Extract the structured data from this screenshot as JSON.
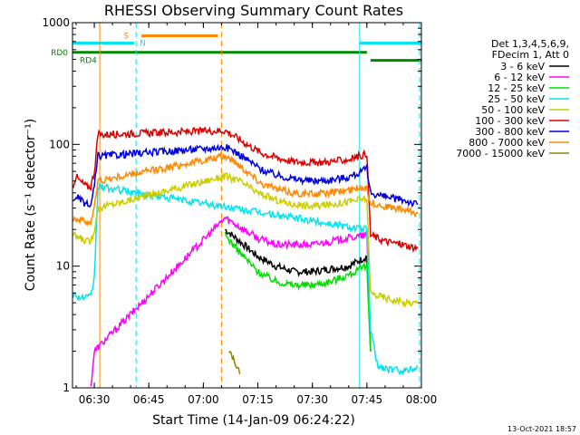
{
  "chart_data": {
    "type": "line",
    "title": "RHESSI Observing Summary Count Rates",
    "xlabel": "Start Time (14-Jan-09 06:24:22)",
    "ylabel": "Count Rate (s⁻¹ detector⁻¹)",
    "x_unit": "minutes of day",
    "xlim": [
      "06:24",
      "08:00"
    ],
    "ylim": [
      1,
      1000
    ],
    "yscale": "log",
    "x_ticks": [
      "06:30",
      "06:45",
      "07:00",
      "07:15",
      "07:30",
      "07:45",
      "08:00"
    ],
    "y_ticks": [
      "1",
      "10",
      "100",
      "1000"
    ],
    "legend": {
      "position": "right",
      "header": [
        "Det 1,3,4,5,6,9,",
        "FDecim 1, Att 0"
      ],
      "entries": [
        {
          "label": "3 - 6 keV",
          "color": "#000000"
        },
        {
          "label": "6 - 12 keV",
          "color": "#ff00ff"
        },
        {
          "label": "12 - 25 keV",
          "color": "#00dd00"
        },
        {
          "label": "25 - 50 keV",
          "color": "#00e5ee"
        },
        {
          "label": "50 - 100 keV",
          "color": "#cccc00"
        },
        {
          "label": "100 - 300 keV",
          "color": "#dd0000"
        },
        {
          "label": "300 - 800 keV",
          "color": "#0000dd"
        },
        {
          "label": "800 - 7000 keV",
          "color": "#ff8800"
        },
        {
          "label": "7000 - 15000 keV",
          "color": "#888800"
        }
      ]
    },
    "flags": [
      {
        "label": "S",
        "color": "#ff8800",
        "y": 780,
        "start": "06:43",
        "end": "07:04"
      },
      {
        "label": "N",
        "color": "#00e5ee",
        "y": 680,
        "start": "06:24",
        "end": "06:41"
      },
      {
        "label": "N",
        "color": "#00e5ee",
        "y": 680,
        "start": "07:43",
        "end": "08:00"
      },
      {
        "label": "RD0",
        "color": "#008800",
        "y": 570,
        "start": "06:24",
        "end": "07:45"
      },
      {
        "label": "RD4",
        "color": "#008800",
        "y": 490,
        "start": "07:46",
        "end": "08:00"
      }
    ],
    "vertical_lines": [
      {
        "x": "06:31.5",
        "color": "#ff8800",
        "style": "solid"
      },
      {
        "x": "06:41.5",
        "color": "#00e5ee",
        "style": "dashed"
      },
      {
        "x": "07:05",
        "color": "#ff8800",
        "style": "dashed"
      },
      {
        "x": "07:43",
        "color": "#00e5ee",
        "style": "solid"
      },
      {
        "x": "07:59.5",
        "color": "#00e5ee",
        "style": "dashed"
      }
    ],
    "series": [
      {
        "name": "3 - 6 keV",
        "color": "#000000",
        "x": [
          "07:06",
          "07:10",
          "07:15",
          "07:20",
          "07:25",
          "07:30",
          "07:35",
          "07:40",
          "07:45",
          "07:46"
        ],
        "y": [
          20,
          16,
          12,
          10,
          9,
          9,
          9.5,
          10,
          12,
          2
        ]
      },
      {
        "name": "6 - 12 keV",
        "color": "#ff00ff",
        "x": [
          "06:29",
          "06:30",
          "07:06",
          "07:10",
          "07:15",
          "07:20",
          "07:25",
          "07:30",
          "07:35",
          "07:40",
          "07:45",
          "07:46"
        ],
        "y": [
          1,
          2,
          25,
          21,
          17,
          15,
          15,
          15,
          16,
          17,
          18,
          2
        ]
      },
      {
        "name": "12 - 25 keV",
        "color": "#00dd00",
        "x": [
          "07:06",
          "07:10",
          "07:15",
          "07:20",
          "07:25",
          "07:30",
          "07:35",
          "07:40",
          "07:45",
          "07:46"
        ],
        "y": [
          18,
          13,
          9,
          7.5,
          7,
          7,
          7.5,
          8.5,
          10,
          2
        ]
      },
      {
        "name": "25 - 50 keV",
        "color": "#00e5ee",
        "x": [
          "06:24",
          "06:26",
          "06:28",
          "06:29",
          "06:30",
          "06:31",
          "07:45",
          "07:46",
          "07:48",
          "07:52",
          "07:56",
          "07:59"
        ],
        "y": [
          6,
          5.5,
          5.5,
          5.5,
          8,
          45,
          20,
          3,
          1.5,
          1.4,
          1.4,
          1.5
        ]
      },
      {
        "name": "50 - 100 keV",
        "color": "#cccc00",
        "x": [
          "06:24",
          "06:26",
          "06:28",
          "06:29",
          "06:30",
          "06:31",
          "07:06",
          "07:10",
          "07:15",
          "07:20",
          "07:25",
          "07:30",
          "07:35",
          "07:40",
          "07:45",
          "07:46",
          "07:50",
          "07:55",
          "07:59"
        ],
        "y": [
          18,
          17,
          16,
          16,
          20,
          30,
          55,
          50,
          40,
          35,
          32,
          31,
          32,
          34,
          36,
          6,
          5.5,
          5,
          5
        ]
      },
      {
        "name": "100 - 300 keV",
        "color": "#dd0000",
        "x": [
          "06:24",
          "06:25",
          "06:26",
          "06:28",
          "06:29",
          "06:30",
          "06:31",
          "07:06",
          "07:08",
          "07:12",
          "07:16",
          "07:20",
          "07:25",
          "07:30",
          "07:35",
          "07:40",
          "07:44",
          "07:45",
          "07:46",
          "07:50",
          "07:55",
          "07:59"
        ],
        "y": [
          45,
          55,
          50,
          45,
          45,
          60,
          120,
          130,
          120,
          100,
          85,
          78,
          72,
          71,
          72,
          75,
          82,
          85,
          18,
          16,
          15,
          14
        ]
      },
      {
        "name": "300 - 800 keV",
        "color": "#0000dd",
        "x": [
          "06:24",
          "06:25",
          "06:26",
          "06:28",
          "06:29",
          "06:30",
          "06:31",
          "07:06",
          "07:08",
          "07:12",
          "07:16",
          "07:20",
          "07:25",
          "07:30",
          "07:35",
          "07:40",
          "07:44",
          "07:45",
          "07:46",
          "07:50",
          "07:55",
          "07:59"
        ],
        "y": [
          33,
          38,
          35,
          32,
          31,
          45,
          80,
          95,
          90,
          75,
          62,
          56,
          52,
          50,
          51,
          54,
          60,
          65,
          40,
          37,
          35,
          32
        ]
      },
      {
        "name": "800 - 7000 keV",
        "color": "#ff8800",
        "x": [
          "06:24",
          "06:26",
          "06:28",
          "06:29",
          "06:30",
          "06:31",
          "07:06",
          "07:08",
          "07:12",
          "07:16",
          "07:20",
          "07:25",
          "07:30",
          "07:35",
          "07:40",
          "07:45",
          "07:46",
          "07:50",
          "07:55",
          "07:59"
        ],
        "y": [
          25,
          24,
          23,
          23,
          30,
          50,
          80,
          75,
          60,
          48,
          43,
          40,
          39,
          40,
          42,
          45,
          33,
          31,
          29,
          27
        ]
      },
      {
        "name": "7000 - 15000 keV",
        "color": "#888800",
        "x": [
          "07:07",
          "07:08",
          "07:09",
          "07:10"
        ],
        "y": [
          2,
          1.8,
          1.5,
          1.3
        ]
      }
    ]
  },
  "footer": {
    "timestamp": "13-Oct-2021 18:57"
  }
}
